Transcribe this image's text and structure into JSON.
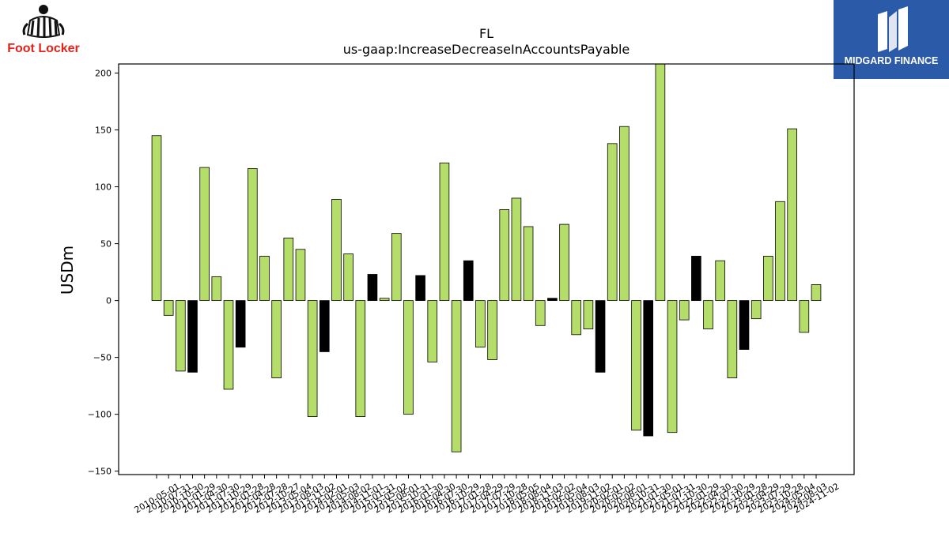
{
  "logos": {
    "left": {
      "text": "Foot Locker",
      "accent": "#e2231a",
      "icon": "referee-figure-icon"
    },
    "right": {
      "text": "MIDGARD FINANCE",
      "bg": "#2b5aa8",
      "icon": "midgard-mark-icon"
    }
  },
  "chart_data": {
    "type": "bar",
    "title": "FL",
    "subtitle": "us-gaap:IncreaseDecreaseInAccountsPayable",
    "ylabel": "USDm",
    "xlabel": "",
    "ylim": [
      -153,
      208
    ],
    "yticks": [
      -150,
      -100,
      -50,
      0,
      50,
      100,
      150,
      200
    ],
    "grid": false,
    "colors": {
      "positive_fill": "#b5dd6a",
      "highlight_fill": "#000000",
      "edge": "#000000"
    },
    "categories": [
      "2010-05-01",
      "2010-07-31",
      "2010-10-30",
      "2011-01-29",
      "2011-04-30",
      "2011-07-30",
      "2011-10-29",
      "2012-01-28",
      "2012-04-28",
      "2012-07-28",
      "2012-10-27",
      "2013-05-04",
      "2013-08-03",
      "2013-11-02",
      "2014-02-01",
      "2014-05-03",
      "2014-08-02",
      "2014-11-01",
      "2015-01-31",
      "2015-05-02",
      "2015-08-01",
      "2015-10-31",
      "2016-01-30",
      "2016-04-30",
      "2016-07-30",
      "2016-10-29",
      "2017-01-28",
      "2017-04-29",
      "2017-07-29",
      "2017-10-28",
      "2018-05-05",
      "2018-08-04",
      "2018-11-03",
      "2019-02-02",
      "2019-05-04",
      "2019-08-03",
      "2019-11-02",
      "2020-02-01",
      "2020-05-02",
      "2020-08-01",
      "2020-10-31",
      "2021-01-30",
      "2021-05-01",
      "2021-07-31",
      "2021-10-30",
      "2022-01-29",
      "2022-04-30",
      "2022-07-30",
      "2022-10-29",
      "2023-01-28",
      "2023-04-29",
      "2023-07-29",
      "2023-10-28",
      "2024-05-04",
      "2024-08-03",
      "2024-11-02"
    ],
    "values": [
      145,
      -13,
      -62,
      -63,
      117,
      21,
      -78,
      -41,
      116,
      39,
      -68,
      55,
      45,
      -102,
      -45,
      89,
      41,
      -102,
      23,
      2,
      59,
      -100,
      22,
      -54,
      121,
      -133,
      35,
      -41,
      -52,
      80,
      90,
      65,
      -22,
      2,
      67,
      -30,
      -25,
      -63,
      138,
      153,
      -114,
      -119,
      208,
      -116,
      -17,
      39,
      -25,
      35,
      -68,
      -43,
      -16,
      39,
      87,
      151,
      -28,
      14
    ],
    "highlight": [
      false,
      false,
      false,
      true,
      false,
      false,
      false,
      true,
      false,
      false,
      false,
      false,
      false,
      false,
      true,
      false,
      false,
      false,
      true,
      false,
      false,
      false,
      true,
      false,
      false,
      false,
      true,
      false,
      false,
      false,
      false,
      false,
      false,
      true,
      false,
      false,
      false,
      true,
      false,
      false,
      false,
      true,
      false,
      false,
      false,
      true,
      false,
      false,
      false,
      true,
      false,
      false,
      false,
      false,
      false,
      false
    ]
  }
}
